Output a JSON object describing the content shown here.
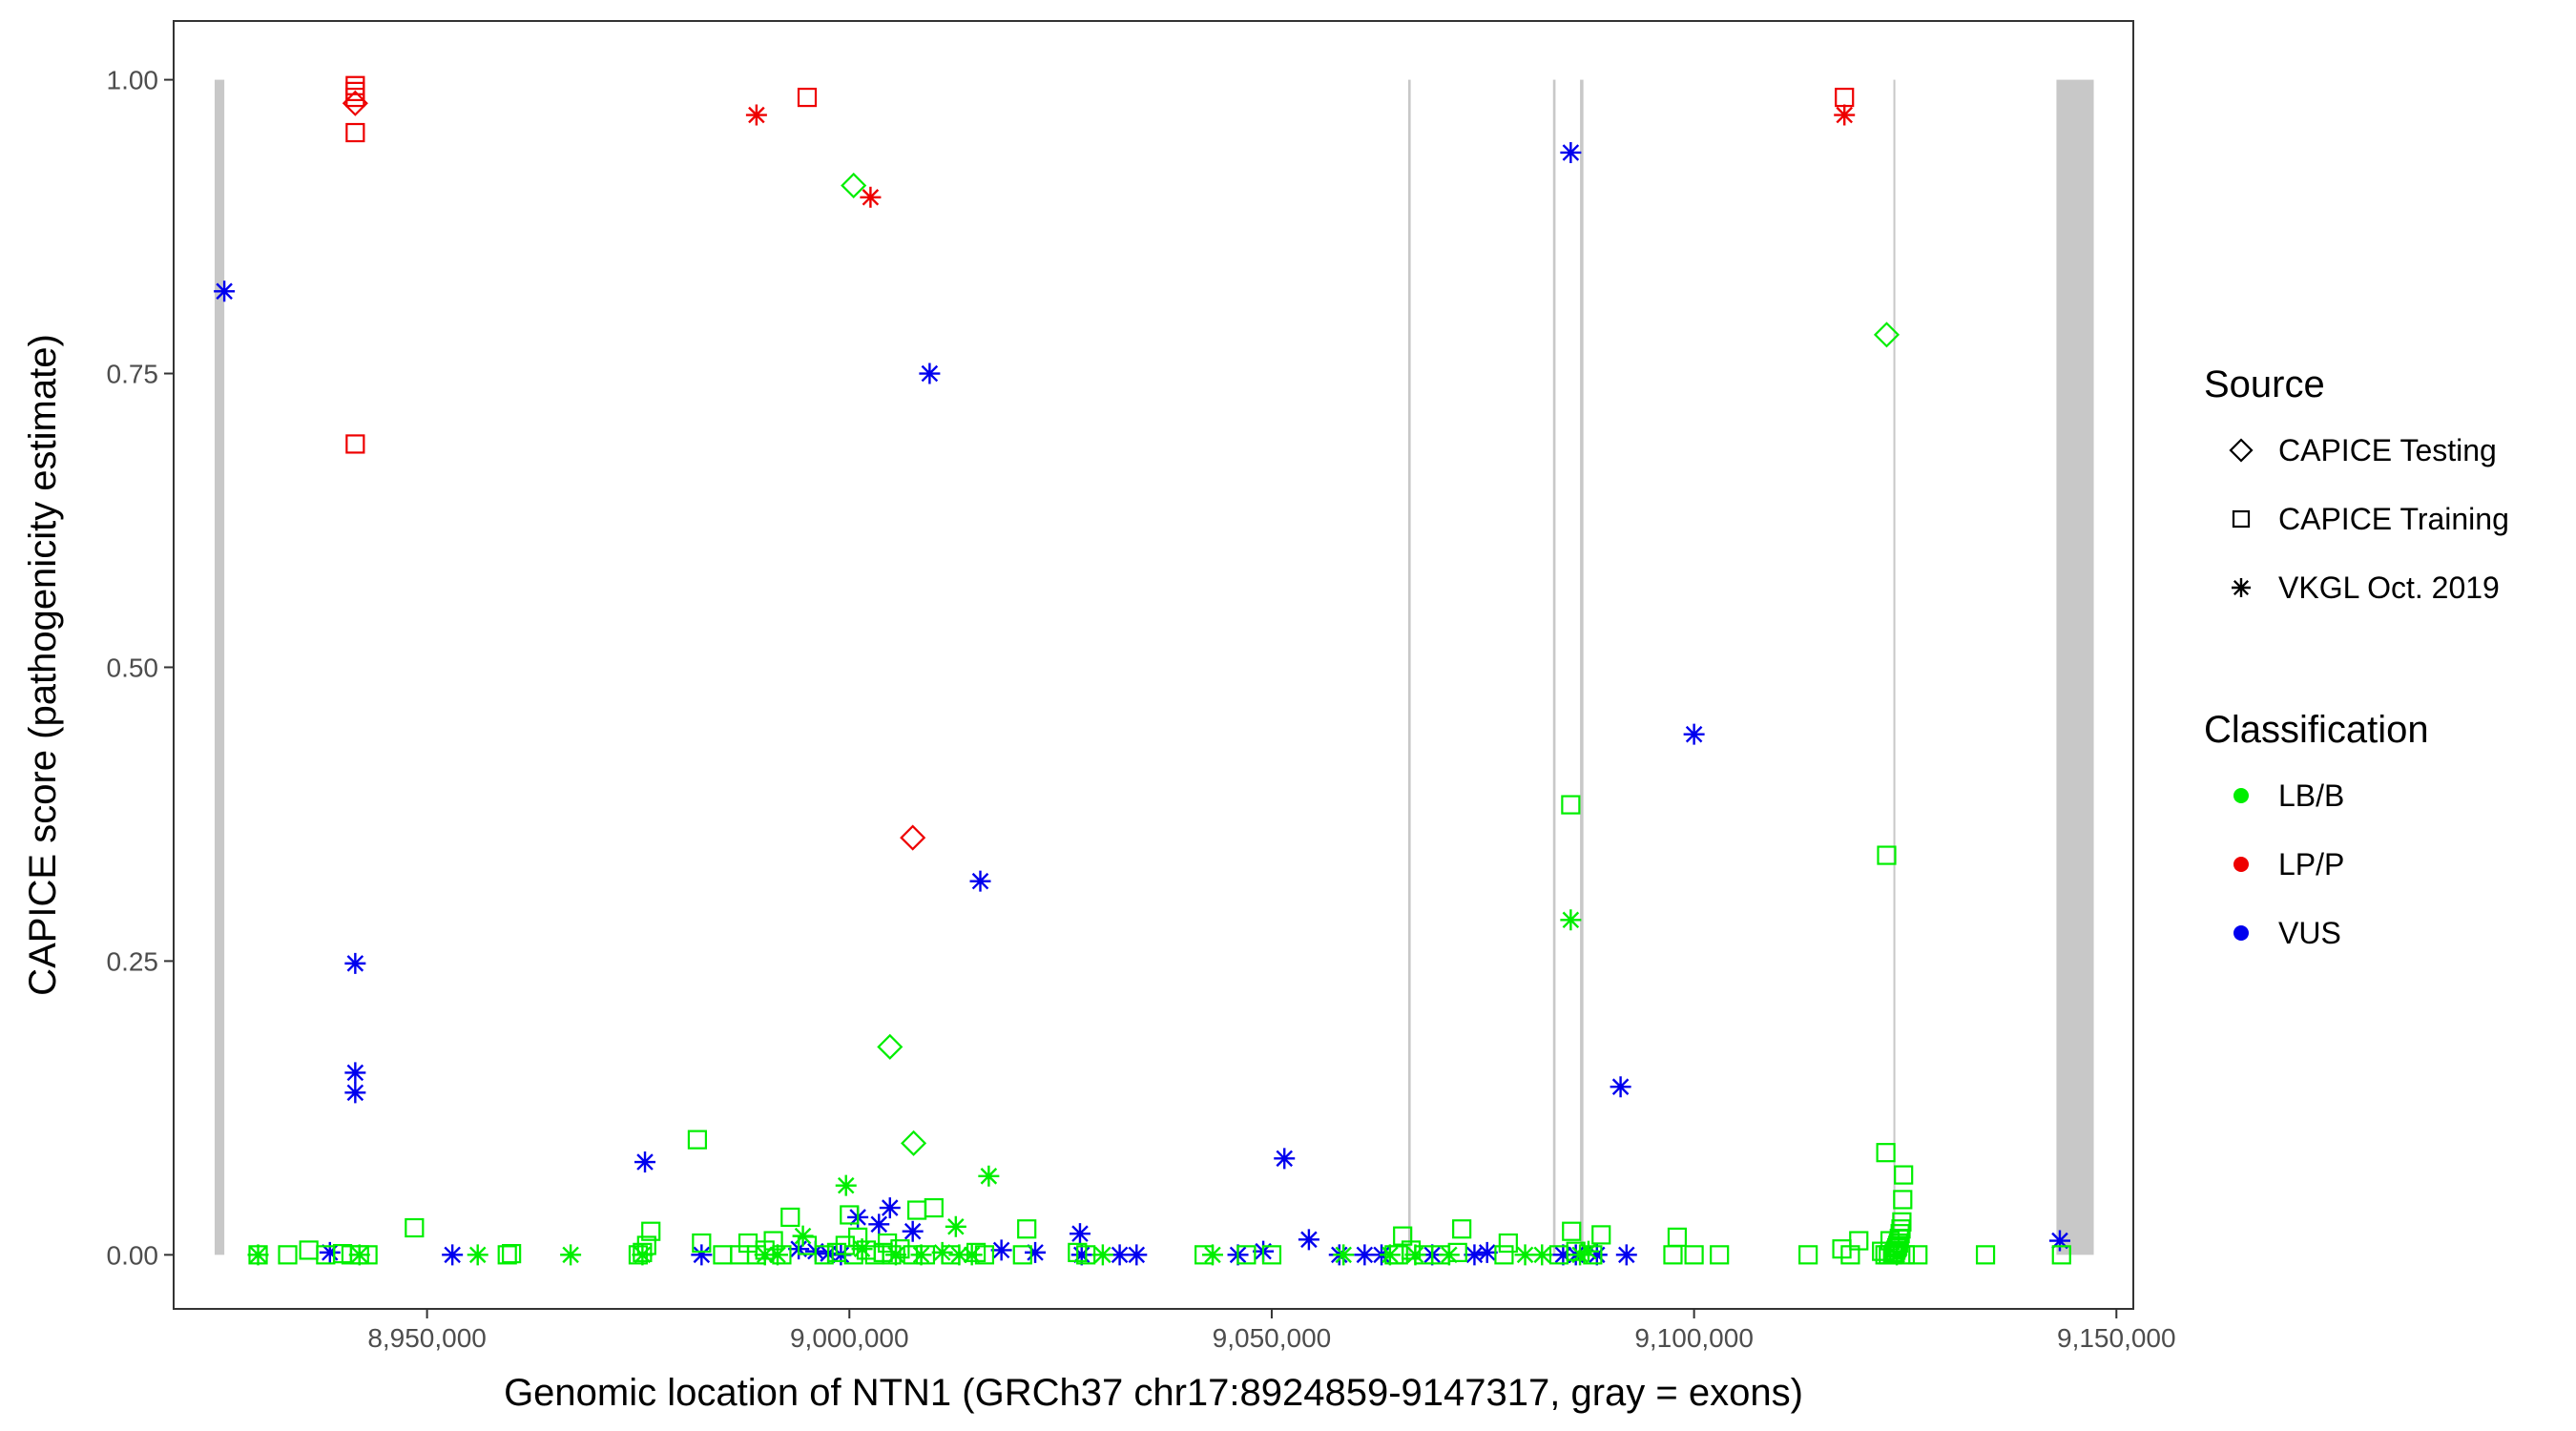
{
  "chart_data": {
    "type": "scatter",
    "xlabel": "Genomic location of NTN1 (GRCh37 chr17:8924859-9147317, gray = exons)",
    "ylabel": "CAPICE score (pathogenicity estimate)",
    "xlim": [
      8920000,
      9152000
    ],
    "ylim": [
      -0.046,
      1.05
    ],
    "x_ticks": [
      8950000,
      9000000,
      9050000,
      9100000,
      9150000
    ],
    "x_tick_labels": [
      "8,950,000",
      "9,000,000",
      "9,050,000",
      "9,100,000",
      "9,150,000"
    ],
    "y_ticks": [
      0,
      0.25,
      0.5,
      0.75,
      1.0
    ],
    "y_tick_labels": [
      "0.00",
      "0.25",
      "0.50",
      "0.75",
      "1.00"
    ],
    "grid": false,
    "legend_position": "right",
    "exons": [
      {
        "start": 8924859,
        "end": 8926000
      },
      {
        "start": 9066150,
        "end": 9066450
      },
      {
        "start": 9083300,
        "end": 9083600
      },
      {
        "start": 9086500,
        "end": 9086900
      },
      {
        "start": 9123600,
        "end": 9123800
      },
      {
        "start": 9142900,
        "end": 9147317
      }
    ],
    "legend_source": {
      "title": "Source",
      "items": [
        {
          "label": "CAPICE Testing",
          "shape": "diamond"
        },
        {
          "label": "CAPICE Training",
          "shape": "square"
        },
        {
          "label": "VKGL Oct. 2019",
          "shape": "asterisk"
        }
      ]
    },
    "legend_classification": {
      "title": "Classification",
      "items": [
        {
          "label": "LB/B",
          "color": "#00ee00"
        },
        {
          "label": "LP/P",
          "color": "#ee0000"
        },
        {
          "label": "VUS",
          "color": "#0000ee"
        }
      ]
    },
    "series": [
      {
        "classification": "LP/P",
        "source": "CAPICE Training",
        "color": "#ee0000",
        "shape": "square",
        "x": [
          8941500,
          8941500,
          8941500,
          8941500,
          8941500,
          8995000,
          9117800
        ],
        "y": [
          0.995,
          0.99,
          0.985,
          0.955,
          0.69,
          0.985,
          0.985
        ]
      },
      {
        "classification": "LP/P",
        "source": "CAPICE Testing",
        "color": "#ee0000",
        "shape": "diamond",
        "x": [
          8941500,
          9007500
        ],
        "y": [
          0.98,
          0.355
        ]
      },
      {
        "classification": "LP/P",
        "source": "VKGL Oct. 2019",
        "color": "#ee0000",
        "shape": "asterisk",
        "x": [
          8989000,
          9002500,
          9117800
        ],
        "y": [
          0.97,
          0.9,
          0.97
        ]
      },
      {
        "classification": "VUS",
        "source": "VKGL Oct. 2019",
        "color": "#0000ee",
        "shape": "asterisk",
        "x": [
          8926000,
          8941500,
          8941500,
          8941500,
          9009500,
          9015500,
          9085400,
          9100000,
          9091300,
          9051500,
          8975800,
          9143300,
          9054400,
          9004800,
          9001000,
          9003500,
          9007500,
          9027300,
          8938500,
          8953000,
          8982500,
          8994000,
          8996000,
          8997500,
          8999000,
          9018000,
          9022000,
          9027500,
          9032000,
          9034000,
          9046000,
          9049000,
          9058000,
          9061000,
          9063000,
          9069000,
          9074000,
          9075500,
          9084500,
          9086000,
          9088500,
          9092000
        ],
        "y": [
          0.82,
          0.248,
          0.155,
          0.138,
          0.75,
          0.318,
          0.938,
          0.443,
          0.143,
          0.082,
          0.079,
          0.012,
          0.013,
          0.04,
          0.032,
          0.026,
          0.02,
          0.018,
          0.002,
          0.0,
          0.0,
          0.005,
          0.003,
          0.001,
          0.0,
          0.004,
          0.002,
          0.0,
          0.0,
          0.0,
          0.0,
          0.003,
          0.0,
          0.0,
          0.0,
          0.0,
          0.0,
          0.002,
          0.0,
          0.0,
          0.0,
          0.0
        ]
      },
      {
        "classification": "LB/B",
        "source": "CAPICE Testing",
        "color": "#00ee00",
        "shape": "diamond",
        "x": [
          9000500,
          9122800,
          9004800,
          9007600
        ],
        "y": [
          0.91,
          0.783,
          0.177,
          0.095
        ]
      },
      {
        "classification": "LB/B",
        "source": "CAPICE Training",
        "color": "#00ee00",
        "shape": "square",
        "x": [
          9085400,
          9122800,
          9122700,
          8982000,
          9124800,
          9124700,
          9124600,
          9124500,
          9124400,
          9124300,
          9124200,
          9124100,
          9124000,
          9123900,
          9123800,
          9123700,
          9123500,
          9123200,
          9123000,
          9122600,
          9122200,
          9119500,
          9118500,
          9117500,
          9113500,
          9103000,
          9100000,
          9098000,
          9097500,
          9089000,
          9088000,
          9086000,
          9085500,
          9084000,
          9078000,
          9077500,
          9072500,
          9072000,
          9070000,
          9068000,
          9066500,
          9065500,
          9065000,
          9064500,
          9050000,
          9047000,
          9042000,
          9028000,
          9027000,
          9021000,
          9020500,
          9016000,
          9015000,
          9012000,
          9010000,
          9009000,
          9008000,
          9007500,
          9006000,
          9005000,
          9004500,
          9004000,
          9003000,
          9002000,
          9001000,
          9000500,
          9000000,
          8999500,
          8998500,
          8997000,
          8995000,
          8993000,
          8992000,
          8991000,
          8990000,
          8989000,
          8988000,
          8987000,
          8985000,
          8982500,
          8976500,
          8976000,
          8975500,
          8975000,
          8960000,
          8959500,
          8948500,
          8943000,
          8942000,
          8941000,
          8940000,
          8938000,
          8936000,
          8933500,
          8930000,
          9125000,
          9126500,
          9134500,
          9143500
        ],
        "y": [
          0.383,
          0.34,
          0.087,
          0.098,
          0.068,
          0.047,
          0.028,
          0.022,
          0.018,
          0.014,
          0.01,
          0.008,
          0.006,
          0.004,
          0.002,
          0.001,
          0.0,
          0.012,
          0.0,
          0.0,
          0.003,
          0.012,
          0.0,
          0.005,
          0.0,
          0.0,
          0.0,
          0.015,
          0.0,
          0.017,
          0.0,
          0.003,
          0.02,
          0.0,
          0.01,
          0.0,
          0.022,
          0.002,
          0.0,
          0.0,
          0.004,
          0.016,
          0.0,
          0.0,
          0.0,
          0.0,
          0.0,
          0.0,
          0.002,
          0.022,
          0.0,
          0.0,
          0.002,
          0.0,
          0.04,
          0.0,
          0.038,
          0.0,
          0.005,
          0.0,
          0.01,
          0.002,
          0.0,
          0.004,
          0.015,
          0.0,
          0.034,
          0.008,
          0.002,
          0.0,
          0.008,
          0.032,
          0.0,
          0.012,
          0.004,
          0.0,
          0.01,
          0.0,
          0.0,
          0.01,
          0.02,
          0.008,
          0.002,
          0.0,
          0.001,
          0.0,
          0.023,
          0.0,
          0.0,
          0.0,
          0.001,
          0.0,
          0.004,
          0.0,
          0.0,
          0.0,
          0.0,
          0.0,
          0.0
        ]
      },
      {
        "classification": "LB/B",
        "source": "VKGL Oct. 2019",
        "color": "#00ee00",
        "shape": "asterisk",
        "x": [
          9085400,
          9016500,
          8999600,
          9012600,
          8994500,
          8930000,
          8942000,
          8956000,
          8967000,
          8975500,
          8990000,
          8991500,
          9001500,
          9005500,
          9008500,
          9011000,
          9013000,
          9014500,
          9030000,
          9043000,
          9058500,
          9064000,
          9067000,
          9071000,
          9080000,
          9082000,
          9086500,
          9087500,
          9124000
        ],
        "y": [
          0.285,
          0.067,
          0.059,
          0.024,
          0.016,
          0.0,
          0.0,
          0.0,
          0.0,
          0.0,
          0.0,
          0.0,
          0.005,
          0.0,
          0.0,
          0.002,
          0.0,
          0.0,
          0.0,
          0.0,
          0.0,
          0.0,
          0.0,
          0.0,
          0.0,
          0.0,
          0.0,
          0.003,
          0.0
        ]
      }
    ]
  }
}
